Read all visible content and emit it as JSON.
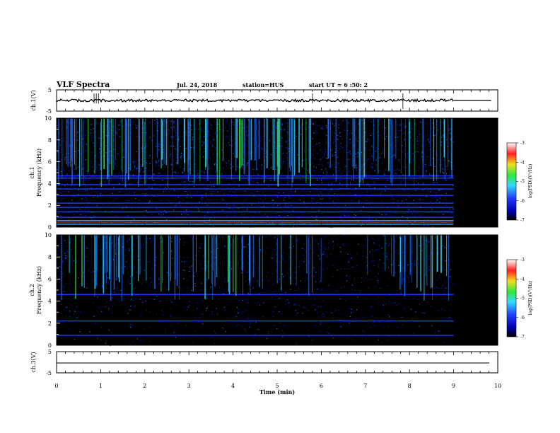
{
  "header": {
    "title": "VLF Spectra",
    "date": "Jul. 24, 2018",
    "station": "station=HUS",
    "start": "start UT = 6 :50: 2"
  },
  "chart_data": [
    {
      "type": "line",
      "panel": "ch1-waveform",
      "ylabel": "ch.1(V)",
      "ylim": [
        -5,
        5
      ],
      "yticks": [
        "5",
        "-5"
      ],
      "xlim": [
        0,
        10
      ],
      "series": [
        {
          "values_description_none": "",
          "x": [
            0,
            9.0,
            9.0,
            9.85
          ],
          "y": [
            0,
            0,
            0,
            0
          ]
        }
      ],
      "noise_amplitude": 0.6,
      "data_end_min": 9.0
    },
    {
      "type": "heatmap",
      "panel": "ch1-spectrogram",
      "ylabel_channel": "ch.1",
      "ylabel": "Frequency (kHz)",
      "ylim": [
        0,
        10
      ],
      "yticks": [
        "0",
        "2",
        "4",
        "6",
        "8",
        "10"
      ],
      "xlim": [
        0,
        10
      ],
      "data_end_min": 9.0,
      "colorbar": {
        "label": "log(PSD)(V²/Hz)",
        "range": [
          -7,
          -3
        ],
        "ticks": [
          "-3",
          "-4",
          "-5",
          "-6",
          "-7"
        ]
      },
      "bands_khz": [
        0.3,
        0.6,
        0.9,
        1.4,
        1.8,
        2.2,
        2.9,
        3.5,
        3.9,
        4.5,
        4.7
      ]
    },
    {
      "type": "heatmap",
      "panel": "ch2-spectrogram",
      "ylabel_channel": "ch.2",
      "ylabel": "Frequency (kHz)",
      "ylim": [
        0,
        10
      ],
      "yticks": [
        "0",
        "2",
        "4",
        "6",
        "8",
        "10"
      ],
      "xlim": [
        0,
        10
      ],
      "data_end_min": 9.0,
      "colorbar": {
        "label": "log(PSD)(V²/Hz)",
        "range": [
          -7,
          -3
        ],
        "ticks": [
          "-3",
          "-4",
          "-5",
          "-6",
          "-7"
        ]
      },
      "bands_khz": [
        0.9,
        2.2,
        4.6
      ]
    },
    {
      "type": "line",
      "panel": "ch3-waveform",
      "ylabel": "ch.3(V)",
      "ylim": [
        -5,
        5
      ],
      "yticks": [
        "5",
        "-5"
      ],
      "xlim": [
        0,
        10
      ],
      "xlabel": "Time (min)",
      "xticks": [
        "0",
        "1",
        "2",
        "3",
        "4",
        "5",
        "6",
        "7",
        "8",
        "9",
        "10"
      ],
      "series": [
        {
          "x": [
            0,
            9.85
          ],
          "y": [
            0,
            0
          ]
        }
      ]
    }
  ],
  "colors": {
    "background": "#000000",
    "axis": "#000000",
    "band": "#1e3cff",
    "spike": "#36d9ff",
    "hot": "#2de83c"
  }
}
